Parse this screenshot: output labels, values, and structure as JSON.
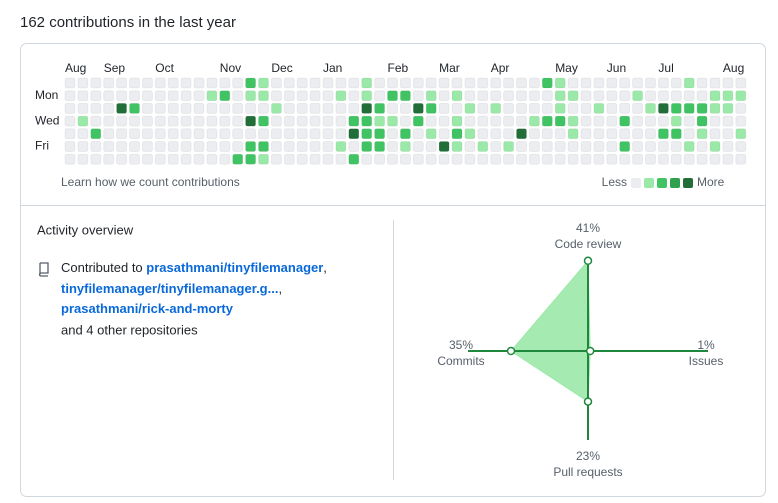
{
  "title": "162 contributions in the last year",
  "calendar": {
    "months": [
      {
        "label": "Aug",
        "week": 0
      },
      {
        "label": "Sep",
        "week": 3
      },
      {
        "label": "Oct",
        "week": 7
      },
      {
        "label": "Nov",
        "week": 12
      },
      {
        "label": "Dec",
        "week": 16
      },
      {
        "label": "Jan",
        "week": 20
      },
      {
        "label": "Feb",
        "week": 25
      },
      {
        "label": "Mar",
        "week": 29
      },
      {
        "label": "Apr",
        "week": 33
      },
      {
        "label": "May",
        "week": 38
      },
      {
        "label": "Jun",
        "week": 42
      },
      {
        "label": "Jul",
        "week": 46
      },
      {
        "label": "Aug",
        "week": 51
      }
    ],
    "day_labels": [
      {
        "label": "Mon",
        "day": 1
      },
      {
        "label": "Wed",
        "day": 3
      },
      {
        "label": "Fri",
        "day": 5
      }
    ],
    "level_colors": [
      "#ebedf0",
      "#9be9a8",
      "#40c463",
      "#30a14e",
      "#216e39"
    ],
    "levels": [
      [
        0,
        0,
        0,
        0,
        0,
        0,
        0,
        0,
        0,
        0,
        0,
        0,
        0,
        0,
        2,
        1,
        0,
        0,
        0,
        0,
        0,
        0,
        0,
        1,
        0,
        0,
        0,
        0,
        0,
        0,
        0,
        0,
        0,
        0,
        0,
        0,
        0,
        2,
        1,
        0,
        0,
        0,
        0,
        0,
        0,
        0,
        0,
        0,
        1,
        0,
        0,
        0,
        0
      ],
      [
        0,
        0,
        0,
        0,
        0,
        0,
        0,
        0,
        0,
        0,
        0,
        1,
        2,
        0,
        1,
        1,
        0,
        0,
        0,
        0,
        0,
        1,
        0,
        1,
        0,
        2,
        2,
        0,
        1,
        0,
        1,
        0,
        0,
        0,
        0,
        0,
        0,
        0,
        1,
        1,
        0,
        0,
        0,
        0,
        1,
        0,
        0,
        0,
        0,
        0,
        1,
        1,
        1
      ],
      [
        0,
        0,
        0,
        0,
        4,
        2,
        0,
        0,
        0,
        0,
        0,
        0,
        0,
        0,
        0,
        0,
        1,
        0,
        0,
        0,
        0,
        0,
        0,
        4,
        2,
        0,
        0,
        4,
        2,
        0,
        0,
        1,
        0,
        1,
        0,
        0,
        0,
        0,
        1,
        0,
        0,
        1,
        0,
        0,
        0,
        1,
        4,
        2,
        2,
        2,
        1,
        1,
        0
      ],
      [
        0,
        1,
        0,
        0,
        0,
        0,
        0,
        0,
        0,
        0,
        0,
        0,
        0,
        0,
        4,
        2,
        0,
        0,
        0,
        0,
        0,
        0,
        2,
        2,
        1,
        1,
        0,
        2,
        0,
        0,
        1,
        0,
        0,
        0,
        0,
        0,
        1,
        2,
        2,
        1,
        0,
        0,
        0,
        2,
        0,
        0,
        0,
        1,
        0,
        2,
        0,
        0,
        0
      ],
      [
        0,
        0,
        2,
        0,
        0,
        0,
        0,
        0,
        0,
        0,
        0,
        0,
        0,
        0,
        0,
        0,
        0,
        0,
        0,
        0,
        0,
        0,
        4,
        2,
        2,
        0,
        2,
        0,
        1,
        0,
        2,
        1,
        0,
        0,
        0,
        4,
        0,
        0,
        0,
        1,
        0,
        0,
        0,
        0,
        0,
        0,
        2,
        2,
        0,
        1,
        0,
        0,
        1
      ],
      [
        0,
        0,
        0,
        0,
        0,
        0,
        0,
        0,
        0,
        0,
        0,
        0,
        0,
        0,
        2,
        2,
        0,
        0,
        0,
        0,
        0,
        1,
        0,
        2,
        2,
        0,
        1,
        0,
        0,
        4,
        1,
        0,
        1,
        0,
        1,
        0,
        0,
        0,
        0,
        0,
        0,
        0,
        0,
        2,
        0,
        0,
        0,
        0,
        1,
        0,
        1,
        0,
        0
      ],
      [
        0,
        0,
        0,
        0,
        0,
        0,
        0,
        0,
        0,
        0,
        0,
        0,
        0,
        2,
        2,
        1,
        0,
        0,
        0,
        0,
        0,
        0,
        2,
        0,
        0,
        0,
        0,
        0,
        0,
        0,
        0,
        0,
        0,
        0,
        0,
        0,
        0,
        0,
        0,
        0,
        0,
        0,
        0,
        0,
        0,
        0,
        0,
        0,
        0,
        0,
        0,
        0,
        0
      ]
    ],
    "footer_link": "Learn how we count contributions",
    "legend_less": "Less",
    "legend_more": "More"
  },
  "activity": {
    "heading": "Activity overview",
    "prefix": "Contributed to",
    "repos": [
      "prasathmani/tinyfilemanager",
      "tinyfilemanager/tinyfilemanager.g...",
      "prasathmani/rick-and-morty"
    ],
    "separator": ",",
    "suffix": "and 4 other repositories"
  },
  "chart_data": {
    "type": "radar",
    "categories": [
      "Code review",
      "Issues",
      "Pull requests",
      "Commits"
    ],
    "values": [
      41,
      1,
      23,
      35
    ],
    "value_labels": [
      "41%",
      "1%",
      "23%",
      "35%"
    ],
    "color": "#9be9a8",
    "line_color": "#1f883d"
  }
}
